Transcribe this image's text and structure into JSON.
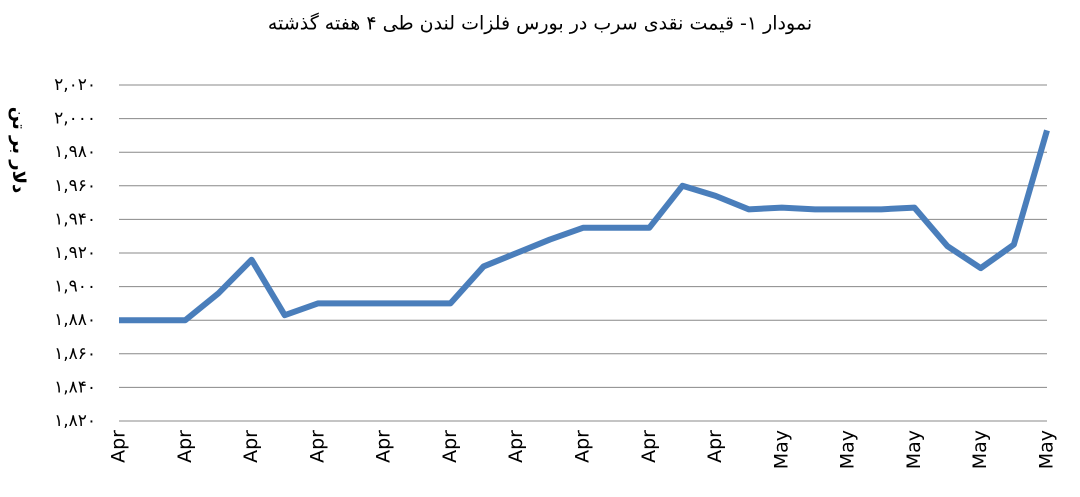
{
  "chart_data": {
    "type": "line",
    "title": "نمودار ۱- قیمت نقدی سرب  در بورس فلزات لندن طی ۴ هفته گذشته",
    "y_label": "دلار بر تن",
    "categories": [
      "Apr",
      null,
      "Apr",
      null,
      "Apr",
      null,
      "Apr",
      null,
      "Apr",
      null,
      "Apr",
      null,
      "Apr",
      null,
      "Apr",
      null,
      "Apr",
      null,
      "Apr",
      null,
      "May",
      null,
      "May",
      null,
      "May",
      null,
      "May",
      null,
      "May"
    ],
    "values": [
      1880,
      1880,
      1880,
      1896,
      1916,
      1883,
      1890,
      1890,
      1890,
      1890,
      1890,
      1912,
      1920,
      1928,
      1935,
      1935,
      1935,
      1960,
      1954,
      1946,
      1947,
      1946,
      1946,
      1946,
      1947,
      1924,
      1911,
      1925,
      1993
    ],
    "color": "#4a7ebb",
    "ylim": [
      1820,
      2020
    ],
    "yticks": [
      {
        "value": 1820,
        "label": "۱,۸۲۰"
      },
      {
        "value": 1840,
        "label": "۱,۸۴۰"
      },
      {
        "value": 1860,
        "label": "۱,۸۶۰"
      },
      {
        "value": 1880,
        "label": "۱,۸۸۰"
      },
      {
        "value": 1900,
        "label": "۱,۹۰۰"
      },
      {
        "value": 1920,
        "label": "۱,۹۲۰"
      },
      {
        "value": 1940,
        "label": "۱,۹۴۰"
      },
      {
        "value": 1960,
        "label": "۱,۹۶۰"
      },
      {
        "value": 1980,
        "label": "۱,۹۸۰"
      },
      {
        "value": 2000,
        "label": "۲,۰۰۰"
      },
      {
        "value": 2020,
        "label": "۲,۰۲۰"
      }
    ],
    "grid": true
  }
}
